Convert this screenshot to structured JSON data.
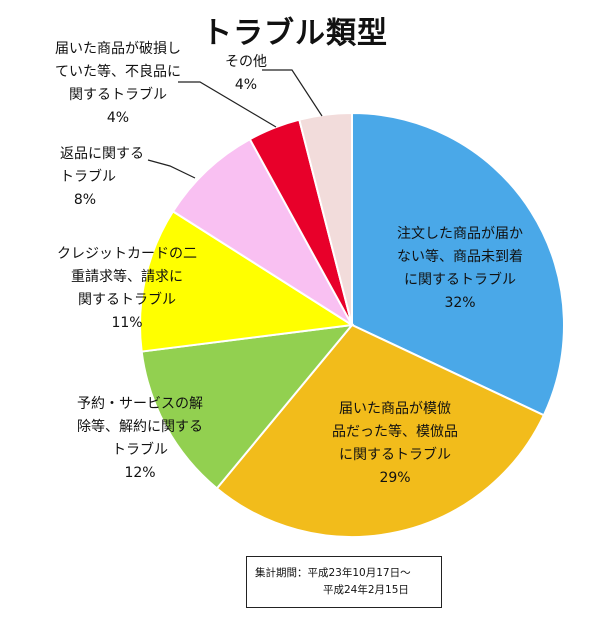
{
  "chart_data": {
    "type": "pie",
    "title": "トラブル類型",
    "value_unit": "%",
    "slices": [
      {
        "label_lines": [
          "注文した商品が届か",
          "ない等、商品未到着",
          "に関するトラブル"
        ],
        "value": 32,
        "value_label": "32%",
        "color": "#4aa8e8"
      },
      {
        "label_lines": [
          "届いた商品が模倣",
          "品だった等、模倣品",
          "に関するトラブル"
        ],
        "value": 29,
        "value_label": "29%",
        "color": "#f2bc1b"
      },
      {
        "label_lines": [
          "予約・サービスの解",
          "除等、解約に関する",
          "トラブル"
        ],
        "value": 12,
        "value_label": "12%",
        "color": "#92d050"
      },
      {
        "label_lines": [
          "クレジットカードの二",
          "重請求等、請求に",
          "関するトラブル"
        ],
        "value": 11,
        "value_label": "11%",
        "color": "#ffff00"
      },
      {
        "label_lines": [
          "返品に関する",
          "トラブル"
        ],
        "value": 8,
        "value_label": "8%",
        "color": "#f9c0f2"
      },
      {
        "label_lines": [
          "届いた商品が破損し",
          "ていた等、不良品に",
          "関するトラブル"
        ],
        "value": 4,
        "value_label": "4%",
        "color": "#e8002a"
      },
      {
        "label_lines": [
          "その他"
        ],
        "value": 4,
        "value_label": "4%",
        "color": "#f2dcdb"
      }
    ]
  },
  "period": {
    "label": "集計期間：",
    "line1": "平成23年10月17日～",
    "line2": "平成24年2月15日"
  }
}
